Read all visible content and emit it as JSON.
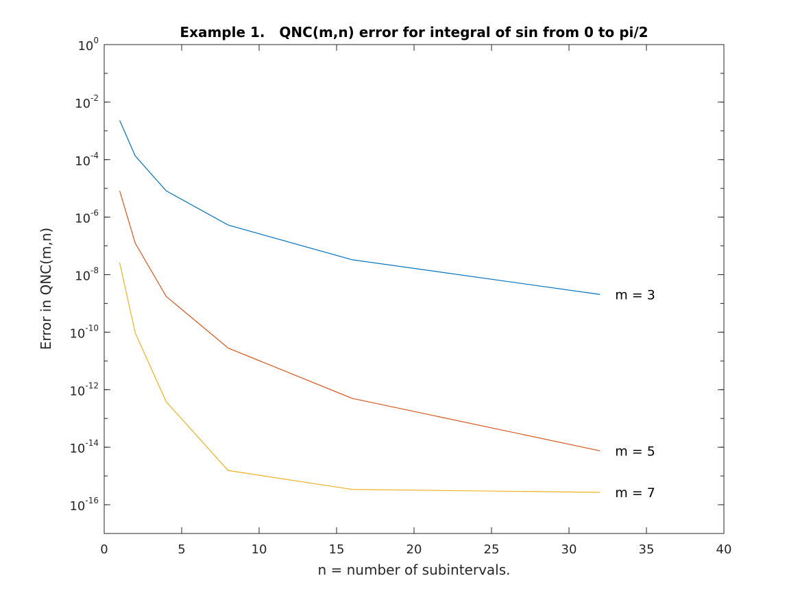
{
  "chart_data": {
    "type": "line",
    "title": "Example 1.   QNC(m,n) error for integral of sin from 0 to pi/2",
    "xlabel": "n = number of subintervals.",
    "ylabel": "Error in QNC(m,n)",
    "xlim": [
      0,
      40
    ],
    "xticks": [
      0,
      5,
      10,
      15,
      20,
      25,
      30,
      35,
      40
    ],
    "ylim": [
      1e-17,
      1
    ],
    "yscale": "log",
    "yticks": [
      {
        "base": "10",
        "exp": "0",
        "value": 1
      },
      {
        "base": "10",
        "exp": "-2",
        "value": 0.01
      },
      {
        "base": "10",
        "exp": "-4",
        "value": 0.0001
      },
      {
        "base": "10",
        "exp": "-6",
        "value": 1e-06
      },
      {
        "base": "10",
        "exp": "-8",
        "value": 1e-08
      },
      {
        "base": "10",
        "exp": "-10",
        "value": 1e-10
      },
      {
        "base": "10",
        "exp": "-12",
        "value": 1e-12
      },
      {
        "base": "10",
        "exp": "-14",
        "value": 1e-14
      },
      {
        "base": "10",
        "exp": "-16",
        "value": 1e-16
      }
    ],
    "grid": false,
    "x": [
      1,
      2,
      4,
      8,
      16,
      32
    ],
    "series": [
      {
        "name": "m = 3",
        "color": "#0072bd",
        "values": [
          0.0023,
          0.000135,
          8.2e-06,
          5.3e-07,
          3.3e-08,
          2.05e-09
        ]
      },
      {
        "name": "m = 5",
        "color": "#d95319",
        "values": [
          8.2e-06,
          1.25e-07,
          1.75e-09,
          2.8e-11,
          5e-13,
          7.5e-15
        ]
      },
      {
        "name": "m = 7",
        "color": "#edb120",
        "values": [
          2.6e-08,
          9.5e-11,
          3.8e-13,
          1.55e-15,
          3.4e-16,
          2.7e-16
        ]
      }
    ]
  }
}
